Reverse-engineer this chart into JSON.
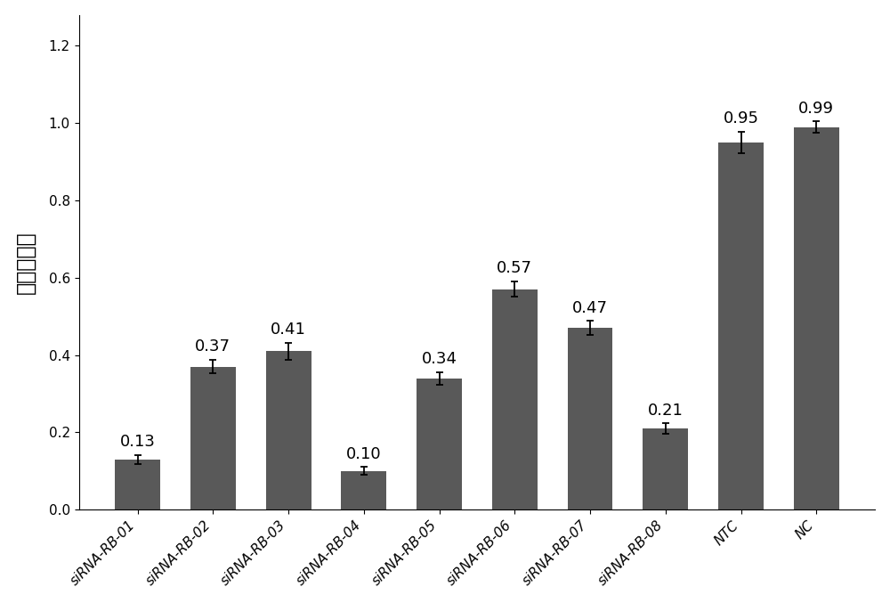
{
  "categories": [
    "siRNA-RB-01",
    "siRNA-RB-02",
    "siRNA-RB-03",
    "siRNA-RB-04",
    "siRNA-RB-05",
    "siRNA-RB-06",
    "siRNA-RB-07",
    "siRNA-RB-08",
    "NTC",
    "NC"
  ],
  "values": [
    0.13,
    0.37,
    0.41,
    0.1,
    0.34,
    0.57,
    0.47,
    0.21,
    0.95,
    0.99
  ],
  "errors": [
    0.012,
    0.018,
    0.022,
    0.01,
    0.016,
    0.02,
    0.018,
    0.013,
    0.028,
    0.014
  ],
  "bar_color": "#595959",
  "ylabel": "相对表达量",
  "ylim": [
    0,
    1.28
  ],
  "yticks": [
    0,
    0.2,
    0.4,
    0.6,
    0.8,
    1.0,
    1.2
  ],
  "value_labels": [
    "0.13",
    "0.37",
    "0.41",
    "0.10",
    "0.34",
    "0.57",
    "0.47",
    "0.21",
    "0.95",
    "0.99"
  ],
  "background_color": "#ffffff",
  "bar_width": 0.6,
  "label_fontsize": 13,
  "tick_fontsize": 11,
  "ylabel_fontsize": 17
}
